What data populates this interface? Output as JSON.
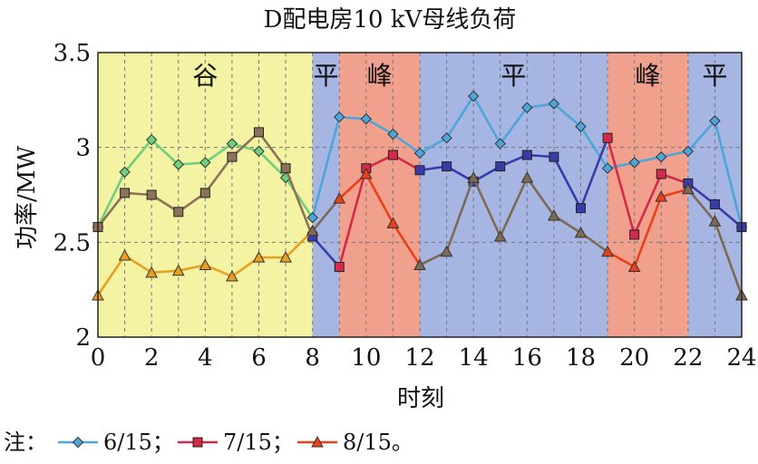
{
  "chart_data": {
    "type": "line",
    "title": "D配电房10 kV母线负荷",
    "xlabel": "时刻",
    "ylabel": "功率/MW",
    "xlim": [
      0,
      24
    ],
    "ylim": [
      2,
      3.5
    ],
    "xticks": [
      0,
      2,
      4,
      6,
      8,
      10,
      12,
      14,
      16,
      18,
      20,
      22,
      24
    ],
    "yticks": [
      2,
      2.5,
      3,
      3.5
    ],
    "ytick_labels": [
      "2",
      "2.5",
      "3",
      "3.5"
    ],
    "grid": true,
    "x": [
      0,
      1,
      2,
      3,
      4,
      5,
      6,
      7,
      8,
      9,
      10,
      11,
      12,
      13,
      14,
      15,
      16,
      17,
      18,
      19,
      20,
      21,
      22,
      23,
      24
    ],
    "periods": [
      {
        "label": "谷",
        "start": 0,
        "end": 8,
        "color": "#f4f3a3"
      },
      {
        "label": "平",
        "start": 8,
        "end": 9,
        "color": "#a7b5e2"
      },
      {
        "label": "峰",
        "start": 9,
        "end": 12,
        "color": "#f0a08c"
      },
      {
        "label": "平",
        "start": 12,
        "end": 19,
        "color": "#a7b5e2"
      },
      {
        "label": "峰",
        "start": 19,
        "end": 22,
        "color": "#f0a08c"
      },
      {
        "label": "平",
        "start": 22,
        "end": 24,
        "color": "#a7b5e2"
      }
    ],
    "series": [
      {
        "name": "6/15",
        "marker": "diamond",
        "color": "#4da6d9",
        "valley_color": "#6fcf7f",
        "values": [
          2.58,
          2.87,
          3.04,
          2.91,
          2.92,
          3.02,
          2.98,
          2.84,
          2.63,
          3.16,
          3.15,
          3.07,
          2.97,
          3.05,
          3.27,
          3.02,
          3.21,
          3.23,
          3.11,
          2.89,
          2.92,
          2.95,
          2.98,
          3.14,
          2.58
        ]
      },
      {
        "name": "7/15",
        "marker": "square",
        "color": "#3b3ba8",
        "valley_color": "#8c7258",
        "peak_color": "#d42a4a",
        "values": [
          2.58,
          2.76,
          2.75,
          2.66,
          2.76,
          2.95,
          3.08,
          2.89,
          2.53,
          2.37,
          2.89,
          2.96,
          2.88,
          2.9,
          2.82,
          2.9,
          2.96,
          2.95,
          2.68,
          3.05,
          2.54,
          2.86,
          2.81,
          2.7,
          2.58
        ]
      },
      {
        "name": "8/15",
        "marker": "triangle",
        "color": "#7d6a55",
        "valley_color": "#e8a020",
        "peak_color": "#e8401a",
        "values": [
          2.22,
          2.43,
          2.34,
          2.35,
          2.38,
          2.32,
          2.42,
          2.42,
          2.56,
          2.73,
          2.86,
          2.6,
          2.38,
          2.45,
          2.84,
          2.53,
          2.84,
          2.64,
          2.55,
          2.45,
          2.37,
          2.74,
          2.78,
          2.61,
          2.22
        ]
      }
    ]
  },
  "note": {
    "prefix": "注：",
    "sep": "；",
    "end": "。"
  }
}
